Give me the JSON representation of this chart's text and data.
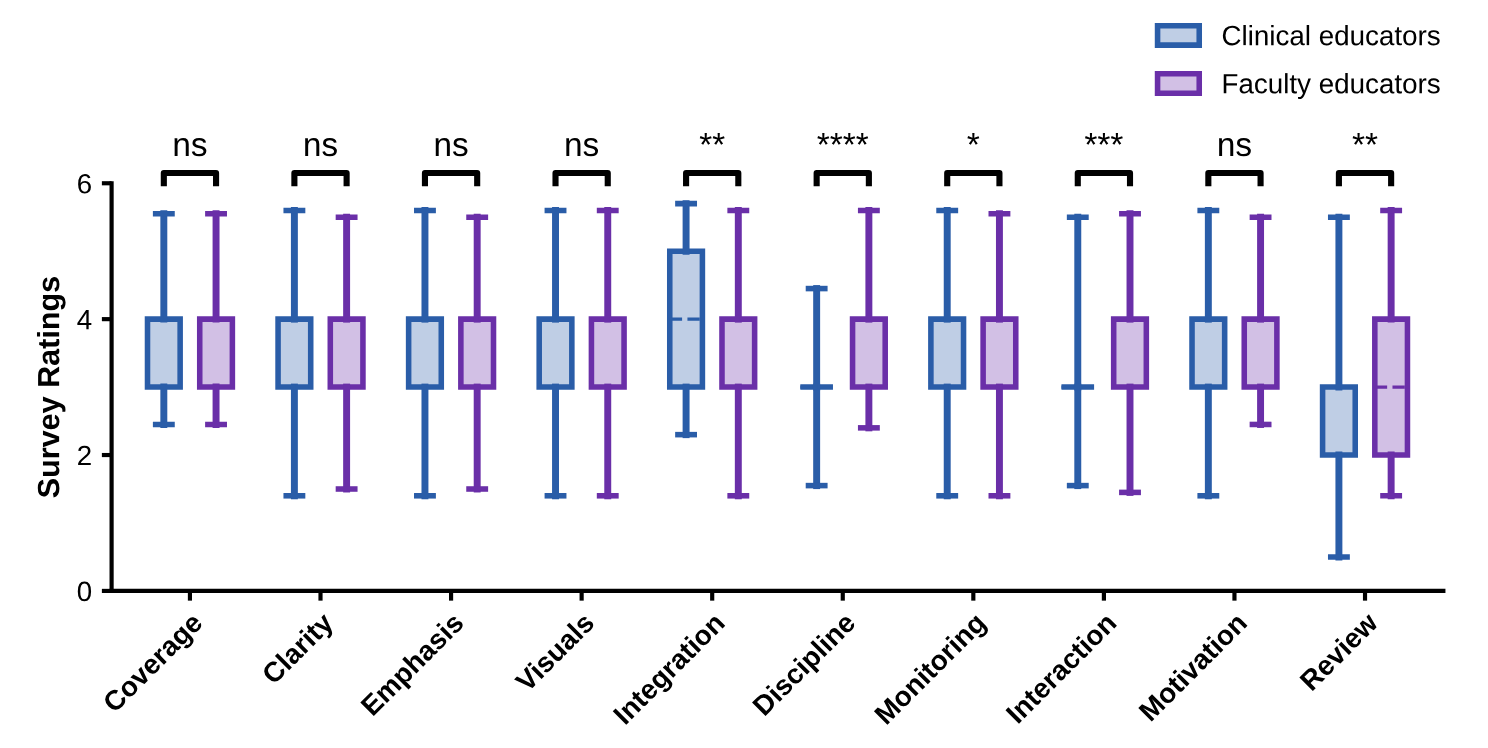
{
  "chart_data": {
    "type": "box",
    "ylabel": "Survey Ratings",
    "categories": [
      "Coverage",
      "Clarity",
      "Emphasis",
      "Visuals",
      "Integration",
      "Discipline",
      "Monitoring",
      "Interaction",
      "Motivation",
      "Review"
    ],
    "series": [
      {
        "name": "Clinical educators",
        "color": "#2a5da8",
        "boxes": [
          {
            "low": 2.45,
            "q1": 3,
            "median": 3,
            "q3": 4,
            "high": 5.55
          },
          {
            "low": 1.4,
            "q1": 3,
            "median": 3,
            "q3": 4,
            "high": 5.6
          },
          {
            "low": 1.4,
            "q1": 3,
            "median": 3,
            "q3": 4,
            "high": 5.6
          },
          {
            "low": 1.4,
            "q1": 3,
            "median": 3,
            "q3": 4,
            "high": 5.6
          },
          {
            "low": 2.3,
            "q1": 3,
            "median": 4,
            "q3": 5,
            "high": 5.7
          },
          {
            "low": 1.55,
            "q1": 3,
            "median": 3,
            "q3": 3,
            "high": 4.45
          },
          {
            "low": 1.4,
            "q1": 3,
            "median": 3,
            "q3": 4,
            "high": 5.6
          },
          {
            "low": 1.55,
            "q1": 3,
            "median": 3,
            "q3": 3,
            "high": 5.5
          },
          {
            "low": 1.4,
            "q1": 3,
            "median": 3,
            "q3": 4,
            "high": 5.6
          },
          {
            "low": 0.5,
            "q1": 2,
            "median": 3,
            "q3": 3,
            "high": 5.5
          }
        ]
      },
      {
        "name": "Faculty educators",
        "color": "#6a2fa8",
        "boxes": [
          {
            "low": 2.45,
            "q1": 3,
            "median": 4,
            "q3": 4,
            "high": 5.55
          },
          {
            "low": 1.5,
            "q1": 3,
            "median": 4,
            "q3": 4,
            "high": 5.5
          },
          {
            "low": 1.5,
            "q1": 3,
            "median": 4,
            "q3": 4,
            "high": 5.5
          },
          {
            "low": 1.4,
            "q1": 3,
            "median": 4,
            "q3": 4,
            "high": 5.6
          },
          {
            "low": 1.4,
            "q1": 3,
            "median": 4,
            "q3": 4,
            "high": 5.6
          },
          {
            "low": 2.4,
            "q1": 3,
            "median": 4,
            "q3": 4,
            "high": 5.6
          },
          {
            "low": 1.4,
            "q1": 3,
            "median": 4,
            "q3": 4,
            "high": 5.55
          },
          {
            "low": 1.45,
            "q1": 3,
            "median": 3,
            "q3": 4,
            "high": 5.55
          },
          {
            "low": 2.45,
            "q1": 3,
            "median": 4,
            "q3": 4,
            "high": 5.5
          },
          {
            "low": 1.4,
            "q1": 2,
            "median": 3,
            "q3": 4,
            "high": 5.6
          }
        ]
      }
    ],
    "ylim": [
      0,
      6
    ],
    "yticks": [
      0,
      2,
      4,
      6
    ],
    "grid": false,
    "legend": "top right",
    "annotations": [
      "ns",
      "ns",
      "ns",
      "ns",
      "**",
      "****",
      "*",
      "***",
      "ns",
      "**"
    ]
  }
}
